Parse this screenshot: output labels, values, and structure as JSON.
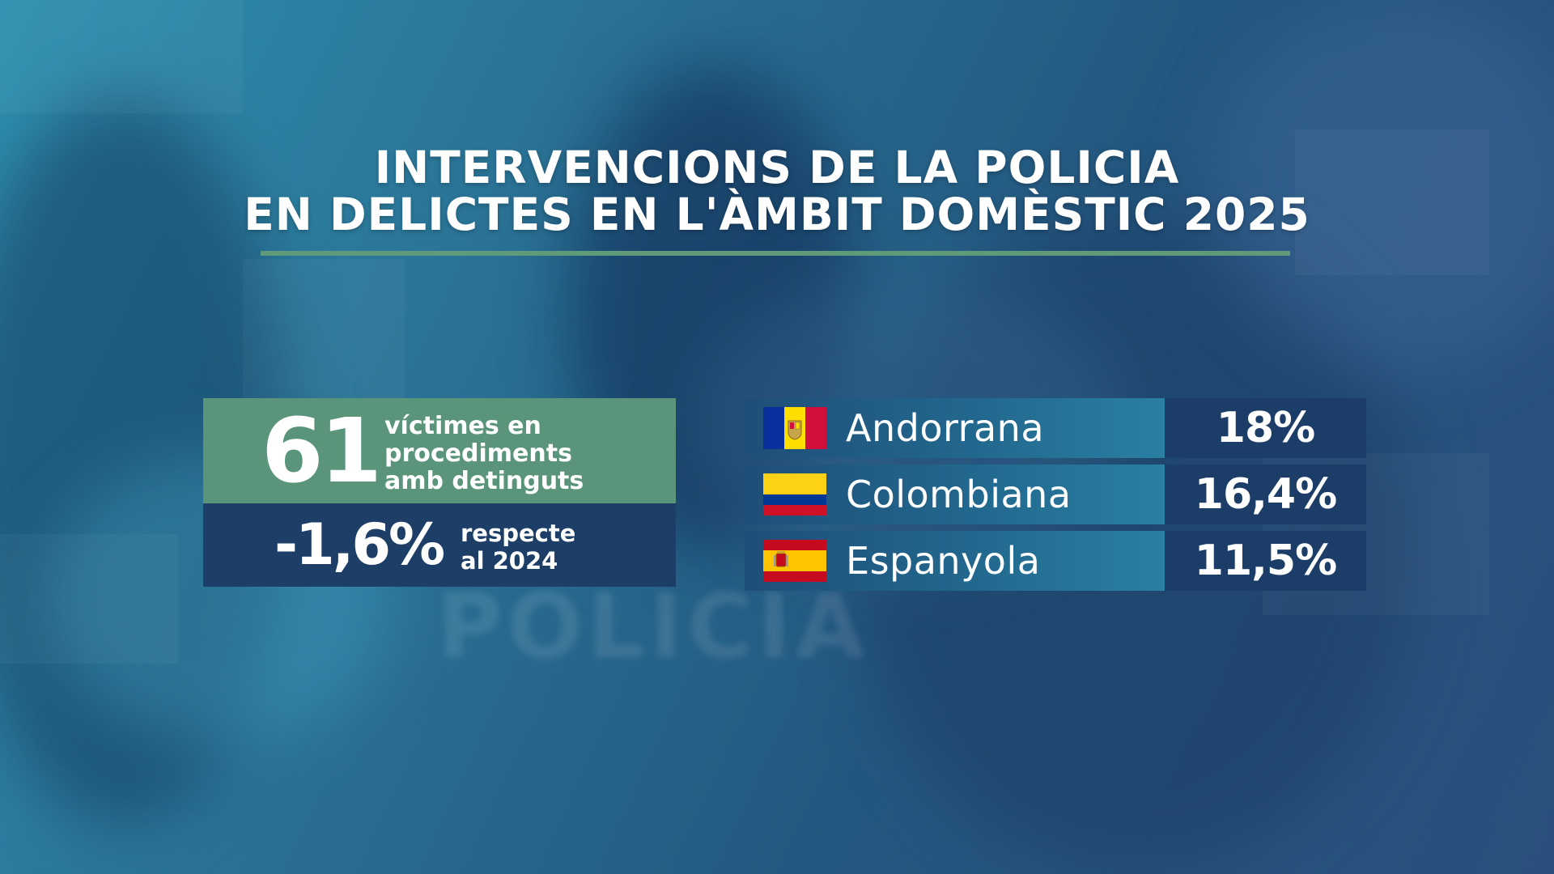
{
  "title": {
    "line1": "INTERVENCIONS DE LA POLICIA",
    "line2": "EN DELICTES EN L'ÀMBIT DOMÈSTIC 2025"
  },
  "background_text": "POLICIA",
  "colors": {
    "accent_green": "#5a957b",
    "panel_dark": "#1d3e66"
  },
  "stat": {
    "value": "61",
    "description": [
      "víctimes en",
      "procediments",
      "amb detinguts"
    ],
    "change_value": "-1,6%",
    "change_description": [
      "respecte",
      "al 2024"
    ]
  },
  "chart_data": {
    "type": "table",
    "columns": [
      "nationality",
      "percentage"
    ],
    "rows": [
      {
        "label": "Andorrana",
        "value": 18,
        "display": "18%",
        "flag": "andorra-flag"
      },
      {
        "label": "Colombiana",
        "value": 16.4,
        "display": "16,4%",
        "flag": "colombia-flag"
      },
      {
        "label": "Espanyola",
        "value": 11.5,
        "display": "11,5%",
        "flag": "spain-flag"
      }
    ]
  }
}
